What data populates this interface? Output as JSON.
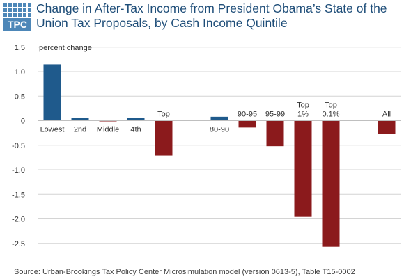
{
  "logo": {
    "text": "TPC"
  },
  "colors": {
    "positive": "#1f5a8c",
    "negative": "#8b1a1c",
    "logo": "#4d87b8",
    "title": "#1f4e79",
    "grid": "#d4d4d4"
  },
  "chart_data": {
    "type": "bar",
    "title": "Change in After-Tax Income  from President Obama’s State of the Union Tax Proposals, by Cash Income Quintile",
    "ylabel": "percent change",
    "ylim": [
      -2.7,
      1.5
    ],
    "yticks": [
      "1.5",
      "1.0",
      "0.5",
      "0",
      "-0.5",
      "-1.0",
      "-1.5",
      "-2.0",
      "-2.5"
    ],
    "grid": true,
    "categories": [
      {
        "label": [
          "Lowest"
        ],
        "value": 1.15
      },
      {
        "label": [
          "2nd"
        ],
        "value": 0.05
      },
      {
        "label": [
          "Middle"
        ],
        "value": -0.01
      },
      {
        "label": [
          "4th"
        ],
        "value": 0.05
      },
      {
        "label": [
          "Top"
        ],
        "value": -0.71
      },
      {
        "label": [],
        "value": null
      },
      {
        "label": [
          "80-90"
        ],
        "value": 0.08
      },
      {
        "label": [
          "90-95"
        ],
        "value": -0.14
      },
      {
        "label": [
          "95-99"
        ],
        "value": -0.52
      },
      {
        "label": [
          "Top",
          "1%"
        ],
        "value": -1.96
      },
      {
        "label": [
          "Top",
          "0.1%"
        ],
        "value": -2.57
      },
      {
        "label": [],
        "value": null
      },
      {
        "label": [
          "All"
        ],
        "value": -0.27
      }
    ]
  },
  "source": "Source: Urban-Brookings Tax Policy Center Microsimulation model (version 0613-5), Table T15-0002"
}
